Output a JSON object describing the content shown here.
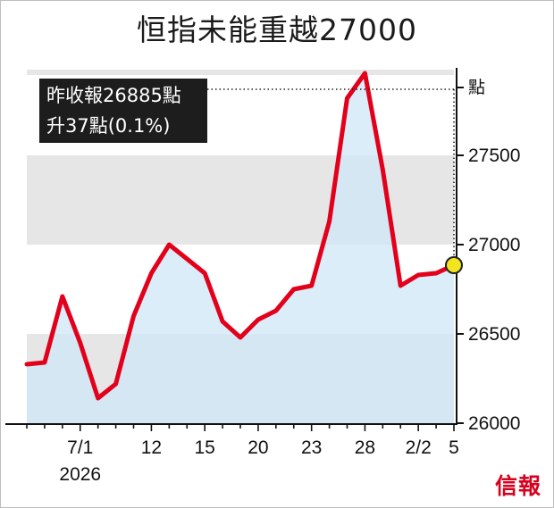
{
  "title": "恒指未能重越27000",
  "info_box": {
    "line1": "昨收報26885點",
    "line2": "升37點(0.1%)"
  },
  "brand": "信報",
  "colors": {
    "line": "#e3001b",
    "area": "#cfe7f7",
    "band_gray": "#e6e6e6",
    "band_white": "#ffffff",
    "marker": "#f2e51d"
  },
  "chart_data": {
    "type": "area",
    "title": "恒指未能重越27000",
    "y_unit": "點",
    "ylim": [
      26000,
      27950
    ],
    "y_ticks": [
      26000,
      26500,
      27000,
      27500
    ],
    "y_tick_labels": [
      "26000",
      "26500",
      "27000",
      "27500"
    ],
    "x_tick_labels": [
      "7/1",
      "12",
      "15",
      "20",
      "23",
      "28",
      "2/2",
      "5"
    ],
    "x_sub_label": "2026",
    "series": [
      {
        "values": [
          26330,
          26340,
          26710,
          26450,
          26140,
          26220,
          26600,
          26840,
          27000,
          26920,
          26840,
          26570,
          26480,
          26580,
          26630,
          26750,
          26770,
          27130,
          27820,
          27960,
          27420,
          26770,
          26830,
          26840,
          26885
        ]
      }
    ],
    "last_value": 26885,
    "grid": false,
    "legend": "none"
  }
}
